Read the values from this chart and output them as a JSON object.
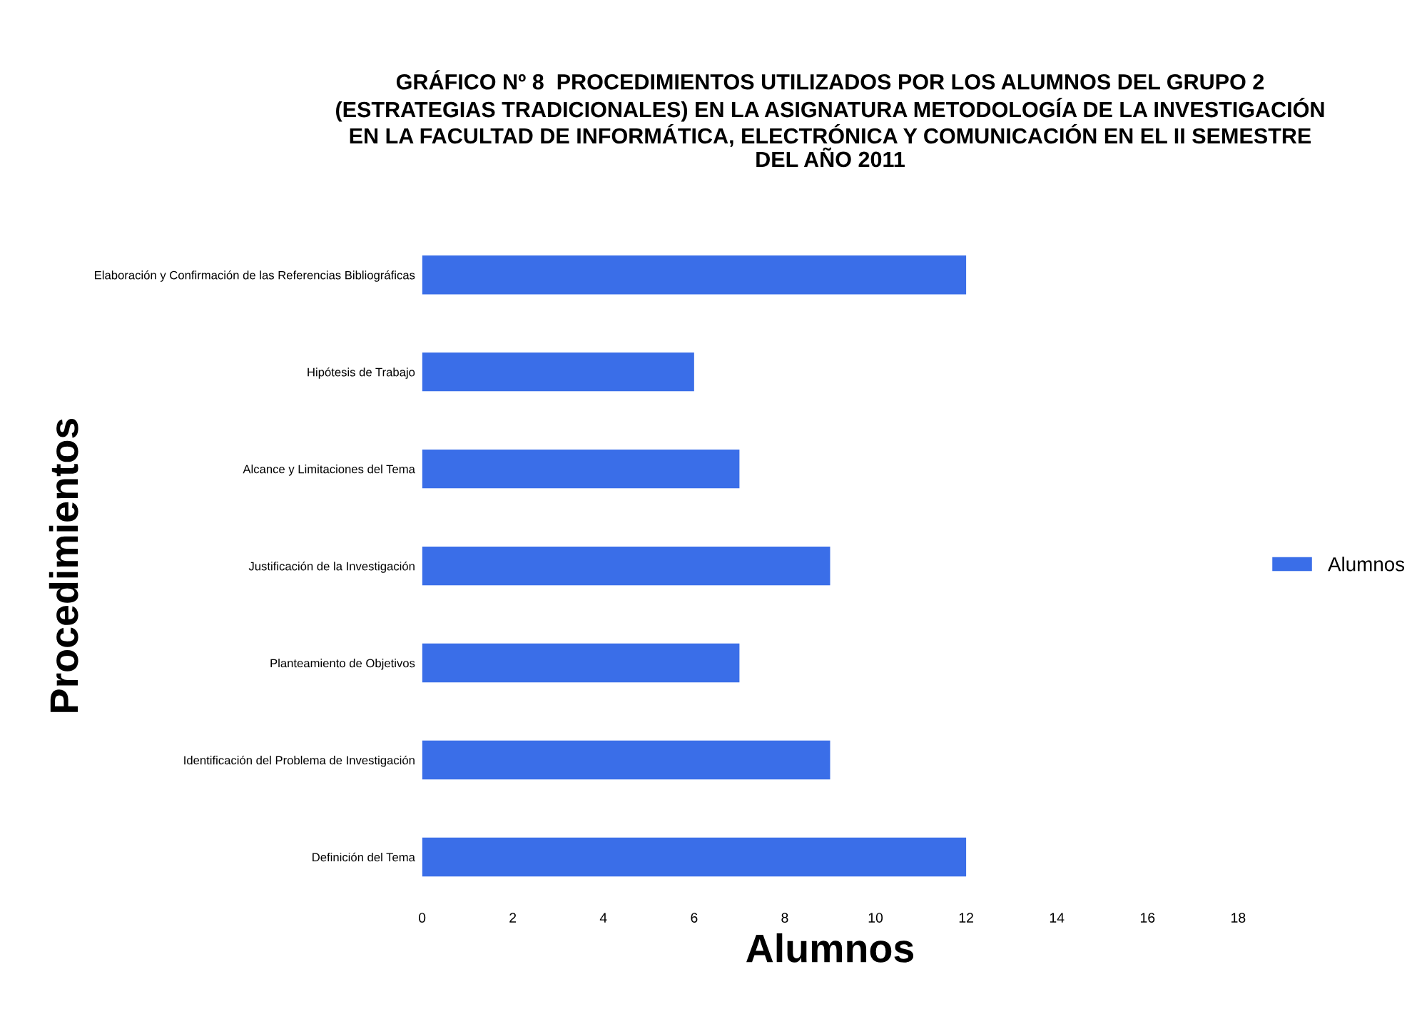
{
  "chart_data": {
    "type": "bar",
    "orientation": "horizontal",
    "title": "GRÁFICO Nº 8  PROCEDIMIENTOS UTILIZADOS POR LOS ALUMNOS DEL GRUPO 2\n(ESTRATEGIAS TRADICIONALES) EN LA ASIGNATURA METODOLOGÍA DE LA INVESTIGACIÓN\nEN LA FACULTAD DE INFORMÁTICA, ELECTRÓNICA Y COMUNICACIÓN EN EL II SEMESTRE\nDEL AÑO 2011",
    "xlabel": "Alumnos",
    "ylabel": "Procedimientos",
    "categories": [
      "Elaboración y Confirmación de las Referencias Bibliográficas",
      "Hipótesis de Trabajo",
      "Alcance y Limitaciones del Tema",
      "Justificación de la Investigación",
      "Planteamiento de Objetivos",
      "Identificación del Problema de Investigación",
      "Definición del Tema"
    ],
    "series": [
      {
        "name": "Alumnos",
        "color": "#3a6ee8",
        "values": [
          12,
          6,
          7,
          9,
          7,
          9,
          12
        ]
      }
    ],
    "xlim": [
      0,
      18
    ],
    "xticks": [
      0,
      2,
      4,
      6,
      8,
      10,
      12,
      14,
      16,
      18
    ],
    "grid": false,
    "legend": "right"
  }
}
